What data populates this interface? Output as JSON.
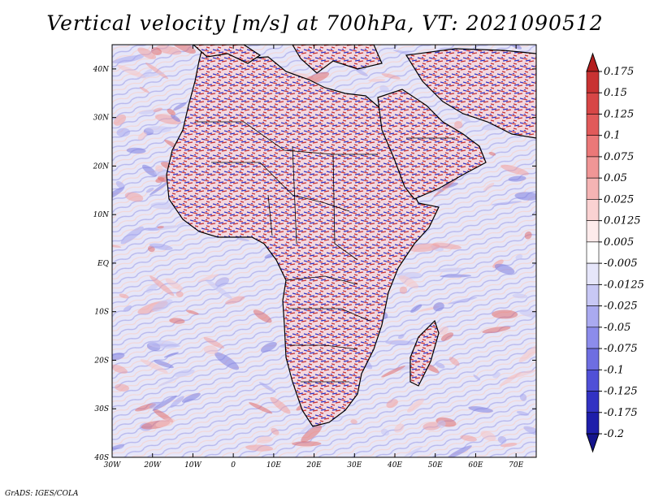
{
  "title": "Vertical velocity [m/s] at 700hPa, VT: 2021090512",
  "credit": "GrADS: IGES/COLA",
  "lat_labels": [
    "40N",
    "30N",
    "20N",
    "10N",
    "EQ",
    "10S",
    "20S",
    "30S",
    "40S"
  ],
  "lat_values": [
    40,
    30,
    20,
    10,
    0,
    -10,
    -20,
    -30,
    -40
  ],
  "lon_labels": [
    "30W",
    "20W",
    "10W",
    "0",
    "10E",
    "20E",
    "30E",
    "40E",
    "50E",
    "60E",
    "70E"
  ],
  "lon_values": [
    -30,
    -20,
    -10,
    0,
    10,
    20,
    30,
    40,
    50,
    60,
    70
  ],
  "lon_range": [
    -30,
    75
  ],
  "lat_range": [
    -40,
    45
  ],
  "colorbar": {
    "labels": [
      "0.175",
      "0.15",
      "0.125",
      "0.1",
      "0.075",
      "0.05",
      "0.025",
      "0.0125",
      "0.005",
      "-0.005",
      "-0.0125",
      "-0.025",
      "-0.05",
      "-0.075",
      "-0.1",
      "-0.125",
      "-0.175",
      "-0.2"
    ],
    "colors": [
      "#b41e1e",
      "#c83232",
      "#d74646",
      "#e15a5a",
      "#eb7878",
      "#f09696",
      "#f5b4b4",
      "#fad2d2",
      "#fdebeb",
      "#ffffff",
      "#e6e6fa",
      "#c8c8f5",
      "#aaaaf0",
      "#8c8ceb",
      "#6e6ee1",
      "#5050d7",
      "#3232c3",
      "#1e1eaa",
      "#14148c"
    ]
  },
  "colors": {
    "ocean_base": "#e8e8f8",
    "land_red": "#c83232",
    "land_blue": "#3232c3"
  }
}
